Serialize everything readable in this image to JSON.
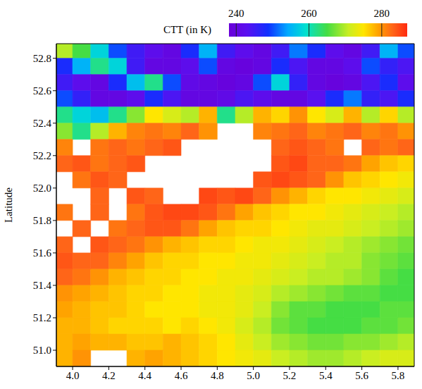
{
  "chart_data": {
    "type": "heatmap",
    "ylabel": "Latitude",
    "xlim": [
      3.91,
      5.89
    ],
    "ylim": [
      50.9,
      52.89
    ],
    "xticks": [
      {
        "value": 4,
        "label": "4.0"
      },
      {
        "value": 4.2,
        "label": "4.2"
      },
      {
        "value": 4.4,
        "label": "4.4"
      },
      {
        "value": 4.6,
        "label": "4.6"
      },
      {
        "value": 4.8,
        "label": "4.8"
      },
      {
        "value": 5,
        "label": "5.0"
      },
      {
        "value": 5.2,
        "label": "5.2"
      },
      {
        "value": 5.4,
        "label": "5.4"
      },
      {
        "value": 5.6,
        "label": "5.6"
      },
      {
        "value": 5.8,
        "label": "5.8"
      }
    ],
    "yticks": [
      {
        "value": 51,
        "label": "51.0"
      },
      {
        "value": 51.2,
        "label": "51.2"
      },
      {
        "value": 51.4,
        "label": "51.4"
      },
      {
        "value": 51.6,
        "label": "51.6"
      },
      {
        "value": 51.8,
        "label": "51.8"
      },
      {
        "value": 52,
        "label": "52.0"
      },
      {
        "value": 52.2,
        "label": "52.2"
      },
      {
        "value": 52.4,
        "label": "52.4"
      },
      {
        "value": 52.6,
        "label": "52.6"
      },
      {
        "value": 52.8,
        "label": "52.8"
      }
    ],
    "x_bins": [
      3.9,
      4.0,
      4.1,
      4.2,
      4.3,
      4.4,
      4.5,
      4.6,
      4.7,
      4.8,
      4.9,
      5.0,
      5.1,
      5.2,
      5.3,
      5.4,
      5.5,
      5.6,
      5.7,
      5.8,
      5.9
    ],
    "y_bins": [
      52.9,
      52.8,
      52.7,
      52.6,
      52.5,
      52.4,
      52.3,
      52.2,
      52.1,
      52.0,
      51.9,
      51.8,
      51.7,
      51.6,
      51.5,
      51.4,
      51.3,
      51.2,
      51.1,
      51.0,
      50.9
    ],
    "cells": [
      [
        270,
        265,
        258,
        250,
        245,
        242,
        240,
        248,
        255,
        245,
        242,
        240,
        245,
        252,
        248,
        242,
        240,
        245,
        255,
        250
      ],
      [
        248,
        255,
        262,
        258,
        245,
        240,
        240,
        242,
        250,
        240,
        239,
        240,
        248,
        244,
        240,
        240,
        242,
        250,
        246,
        244
      ],
      [
        245,
        242,
        240,
        248,
        256,
        262,
        250,
        241,
        240,
        239,
        240,
        250,
        258,
        246,
        240,
        239,
        240,
        244,
        248,
        242
      ],
      [
        250,
        246,
        240,
        240,
        242,
        248,
        244,
        240,
        240,
        241,
        244,
        242,
        240,
        240,
        243,
        248,
        252,
        246,
        244,
        248
      ],
      [
        262,
        258,
        256,
        262,
        268,
        275,
        272,
        270,
        278,
        262,
        270,
        278,
        276,
        280,
        275,
        272,
        278,
        270,
        276,
        270
      ],
      [
        268,
        262,
        270,
        278,
        281,
        282,
        281,
        283,
        280,
        null,
        null,
        281,
        282,
        283,
        281,
        282,
        283,
        281,
        282,
        280
      ],
      [
        281,
        null,
        282,
        283,
        282,
        283,
        284,
        null,
        null,
        null,
        null,
        null,
        283,
        284,
        283,
        282,
        null,
        283,
        282,
        283
      ],
      [
        283,
        284,
        282,
        283,
        284,
        null,
        null,
        null,
        null,
        null,
        null,
        null,
        284,
        285,
        283,
        283,
        282,
        279,
        277,
        276
      ],
      [
        null,
        282,
        284,
        283,
        null,
        null,
        null,
        null,
        null,
        null,
        null,
        284,
        285,
        284,
        283,
        280,
        277,
        276,
        275,
        274
      ],
      [
        null,
        null,
        283,
        null,
        284,
        283,
        null,
        null,
        285,
        284,
        285,
        283,
        280,
        278,
        276,
        275,
        275,
        274,
        273,
        272
      ],
      [
        282,
        null,
        283,
        null,
        282,
        284,
        285,
        285,
        284,
        282,
        279,
        277,
        276,
        275,
        275,
        274,
        273,
        272,
        271,
        270
      ],
      [
        null,
        283,
        null,
        282,
        283,
        284,
        284,
        282,
        279,
        277,
        276,
        276,
        275,
        274,
        273,
        273,
        272,
        271,
        270,
        269
      ],
      [
        283,
        null,
        284,
        283,
        282,
        280,
        278,
        277,
        276,
        276,
        275,
        274,
        274,
        273,
        272,
        271,
        270,
        269,
        268,
        267
      ],
      [
        284,
        283,
        283,
        281,
        279,
        277,
        276,
        276,
        275,
        275,
        274,
        274,
        273,
        272,
        271,
        270,
        270,
        268,
        267,
        266
      ],
      [
        283,
        282,
        280,
        278,
        277,
        276,
        276,
        275,
        275,
        274,
        274,
        273,
        272,
        271,
        270,
        270,
        269,
        268,
        266,
        265
      ],
      [
        280,
        279,
        278,
        277,
        276,
        276,
        275,
        275,
        274,
        274,
        273,
        272,
        270,
        269,
        268,
        267,
        266,
        266,
        265,
        265
      ],
      [
        279,
        278,
        277,
        277,
        276,
        275,
        275,
        275,
        274,
        274,
        273,
        271,
        268,
        266,
        266,
        265,
        265,
        265,
        266,
        266
      ],
      [
        278,
        278,
        277,
        276,
        276,
        276,
        275,
        276,
        275,
        274,
        272,
        270,
        267,
        266,
        265,
        265,
        265,
        266,
        266,
        267
      ],
      [
        278,
        279,
        278,
        278,
        277,
        277,
        278,
        277,
        276,
        275,
        273,
        271,
        269,
        268,
        267,
        267,
        268,
        268,
        269,
        270
      ],
      [
        278,
        280,
        null,
        null,
        278,
        279,
        278,
        277,
        276,
        275,
        274,
        273,
        271,
        270,
        269,
        269,
        270,
        271,
        272,
        272
      ]
    ],
    "colorbar": {
      "title": "CTT (in K)",
      "range": [
        238,
        287
      ],
      "ticks": [
        240,
        260,
        280
      ]
    }
  }
}
